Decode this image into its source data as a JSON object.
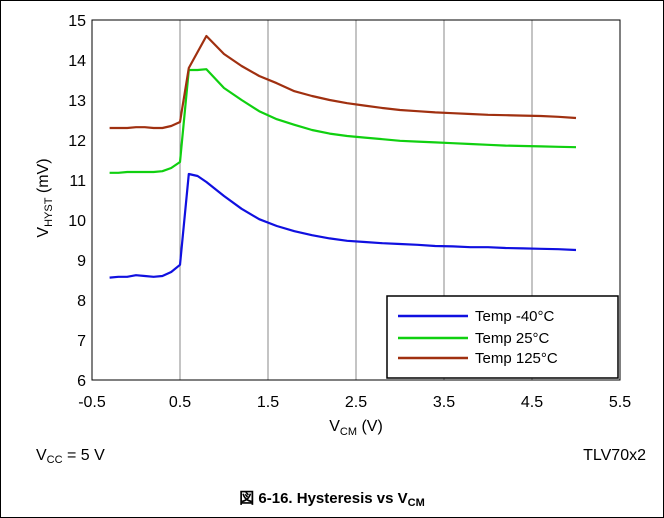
{
  "chart_data": {
    "type": "line",
    "xlabel": "V",
    "xlabel_sub": "CM",
    "xlabel_unit": " (V)",
    "ylabel": "V",
    "ylabel_sub": "HYST",
    "ylabel_unit": " (mV)",
    "xlim": [
      -0.5,
      5.5
    ],
    "ylim": [
      6,
      15
    ],
    "x_ticks": [
      "-0.5",
      "0.5",
      "1.5",
      "2.5",
      "3.5",
      "4.5",
      "5.5"
    ],
    "y_ticks": [
      "6",
      "7",
      "8",
      "9",
      "10",
      "11",
      "12",
      "13",
      "14",
      "15"
    ],
    "grid": "vertical",
    "legend_position": "bottom-right",
    "series": [
      {
        "name": "Temp -40°C",
        "color": "#1010e0",
        "x": [
          -0.3,
          -0.2,
          -0.1,
          0.0,
          0.1,
          0.2,
          0.3,
          0.4,
          0.5,
          0.6,
          0.7,
          0.8,
          1.0,
          1.2,
          1.4,
          1.6,
          1.8,
          2.0,
          2.2,
          2.4,
          2.6,
          2.8,
          3.0,
          3.2,
          3.4,
          3.6,
          3.8,
          4.0,
          4.2,
          4.4,
          4.6,
          4.8,
          5.0
        ],
        "values": [
          8.56,
          8.58,
          8.58,
          8.62,
          8.6,
          8.58,
          8.6,
          8.7,
          8.88,
          11.15,
          11.1,
          10.95,
          10.6,
          10.28,
          10.02,
          9.85,
          9.72,
          9.62,
          9.54,
          9.48,
          9.45,
          9.42,
          9.4,
          9.38,
          9.35,
          9.34,
          9.32,
          9.32,
          9.3,
          9.29,
          9.28,
          9.27,
          9.25
        ]
      },
      {
        "name": "Temp 25°C",
        "color": "#10d010",
        "x": [
          -0.3,
          -0.2,
          -0.1,
          0.0,
          0.1,
          0.2,
          0.3,
          0.4,
          0.5,
          0.6,
          0.7,
          0.8,
          1.0,
          1.2,
          1.4,
          1.6,
          1.8,
          2.0,
          2.2,
          2.4,
          2.6,
          2.8,
          3.0,
          3.2,
          3.4,
          3.6,
          3.8,
          4.0,
          4.2,
          4.4,
          4.6,
          4.8,
          5.0
        ],
        "values": [
          11.18,
          11.18,
          11.2,
          11.2,
          11.2,
          11.2,
          11.22,
          11.3,
          11.45,
          13.75,
          13.75,
          13.77,
          13.3,
          13.0,
          12.72,
          12.52,
          12.38,
          12.25,
          12.16,
          12.1,
          12.06,
          12.02,
          11.98,
          11.96,
          11.94,
          11.92,
          11.9,
          11.88,
          11.86,
          11.85,
          11.84,
          11.83,
          11.82
        ]
      },
      {
        "name": "Temp 125°C",
        "color": "#a03010",
        "x": [
          -0.3,
          -0.2,
          -0.1,
          0.0,
          0.1,
          0.2,
          0.3,
          0.4,
          0.5,
          0.6,
          0.7,
          0.8,
          1.0,
          1.2,
          1.4,
          1.6,
          1.8,
          2.0,
          2.2,
          2.4,
          2.6,
          2.8,
          3.0,
          3.2,
          3.4,
          3.6,
          3.8,
          4.0,
          4.2,
          4.4,
          4.6,
          4.8,
          5.0
        ],
        "values": [
          12.3,
          12.3,
          12.3,
          12.32,
          12.32,
          12.3,
          12.3,
          12.35,
          12.45,
          13.8,
          14.2,
          14.6,
          14.15,
          13.85,
          13.6,
          13.42,
          13.22,
          13.1,
          13.0,
          12.92,
          12.86,
          12.8,
          12.75,
          12.72,
          12.69,
          12.67,
          12.65,
          12.63,
          12.62,
          12.61,
          12.6,
          12.58,
          12.55
        ]
      }
    ]
  },
  "conditions": {
    "prefix": "V",
    "sub": "CC",
    "suffix": " = 5 V"
  },
  "device": "TLV70x2",
  "caption": {
    "figure": "図 6-16. Hysteresis vs V",
    "sub": "CM"
  }
}
